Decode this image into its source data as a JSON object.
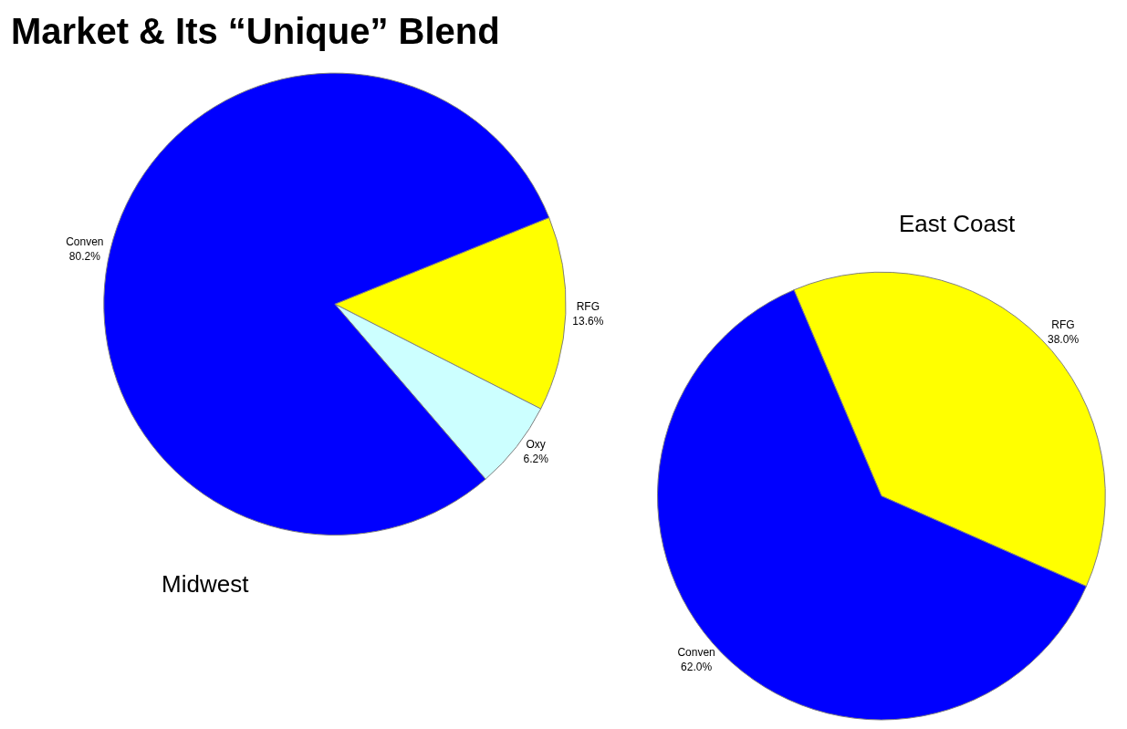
{
  "chart_data": [
    {
      "type": "pie",
      "title": "Midwest",
      "annotations": [
        "Market & Its “Unique” Blend"
      ],
      "categories": [
        "RFG",
        "Oxy",
        "Conven"
      ],
      "values": [
        13.6,
        6.2,
        80.2
      ],
      "value_labels": [
        "13.6%",
        "6.2%",
        "80.2%"
      ],
      "colors": [
        "#ffff00",
        "#ccffff",
        "#0000ff"
      ]
    },
    {
      "type": "pie",
      "title": "East Coast",
      "categories": [
        "RFG",
        "Conven"
      ],
      "values": [
        38.0,
        62.0
      ],
      "value_labels": [
        "38.0%",
        "62.0%"
      ],
      "colors": [
        "#ffff00",
        "#0000ff"
      ]
    }
  ]
}
